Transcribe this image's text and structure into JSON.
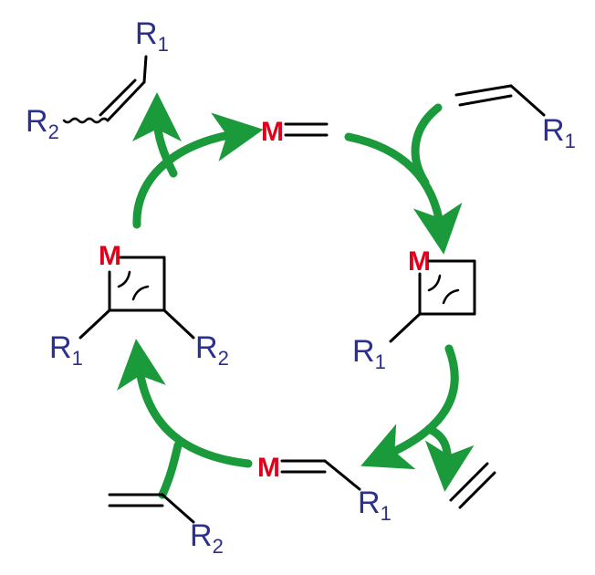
{
  "colors": {
    "arrow": "#1a9a3a",
    "metal": "#e0001b",
    "substituent": "#2b2f8f",
    "bond": "#000000"
  },
  "labels": {
    "metal": "M",
    "r1_main": "R",
    "r1_sub": "1",
    "r2_main": "R",
    "r2_sub": "2"
  }
}
